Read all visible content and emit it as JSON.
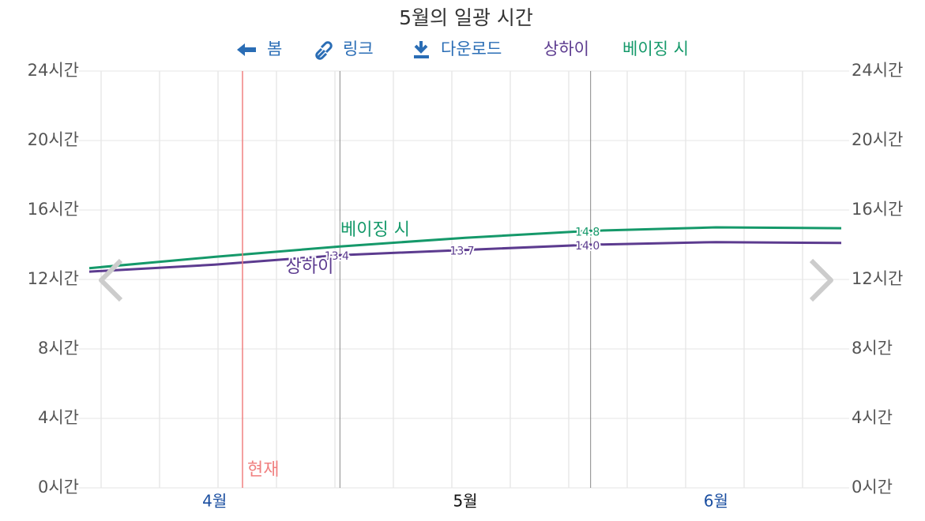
{
  "toolbar": {
    "back": "봄",
    "link": "링크",
    "download": "다운로드"
  },
  "chart_data": {
    "type": "line",
    "title": "5월의 일광 시간",
    "categories": [
      null,
      "4월",
      null,
      "5월",
      null,
      "6월",
      null
    ],
    "series": [
      {
        "name": "상하이",
        "color": "#5c3b8f",
        "values": [
          12.45,
          12.85,
          13.4,
          13.7,
          14.0,
          14.15,
          14.1
        ],
        "value_labels": [
          null,
          null,
          "13.4",
          "13.7",
          "14.0",
          null,
          null
        ]
      },
      {
        "name": "베이징 시",
        "color": "#15996a",
        "values": [
          12.65,
          13.3,
          13.9,
          14.4,
          14.8,
          15.0,
          14.95
        ],
        "value_labels": [
          null,
          null,
          null,
          null,
          "14.8",
          null,
          null
        ]
      }
    ],
    "ylim": [
      0,
      24
    ],
    "yticks": [
      {
        "value": 0,
        "label": "0시간"
      },
      {
        "value": 4,
        "label": "4시간"
      },
      {
        "value": 8,
        "label": "8시간"
      },
      {
        "value": 12,
        "label": "12시간"
      },
      {
        "value": 16,
        "label": "16시간"
      },
      {
        "value": 20,
        "label": "20시간"
      },
      {
        "value": 24,
        "label": "24시간"
      }
    ],
    "y2lim": [
      0,
      24
    ],
    "y2ticks": [
      {
        "value": 0,
        "label": "0시간"
      },
      {
        "value": 4,
        "label": "4시간"
      },
      {
        "value": 8,
        "label": "8시간"
      },
      {
        "value": 12,
        "label": "12시간"
      },
      {
        "value": 16,
        "label": "16시간"
      },
      {
        "value": 20,
        "label": "20시간"
      },
      {
        "value": 24,
        "label": "24시간"
      }
    ],
    "annotation": "현재",
    "grid": true
  }
}
